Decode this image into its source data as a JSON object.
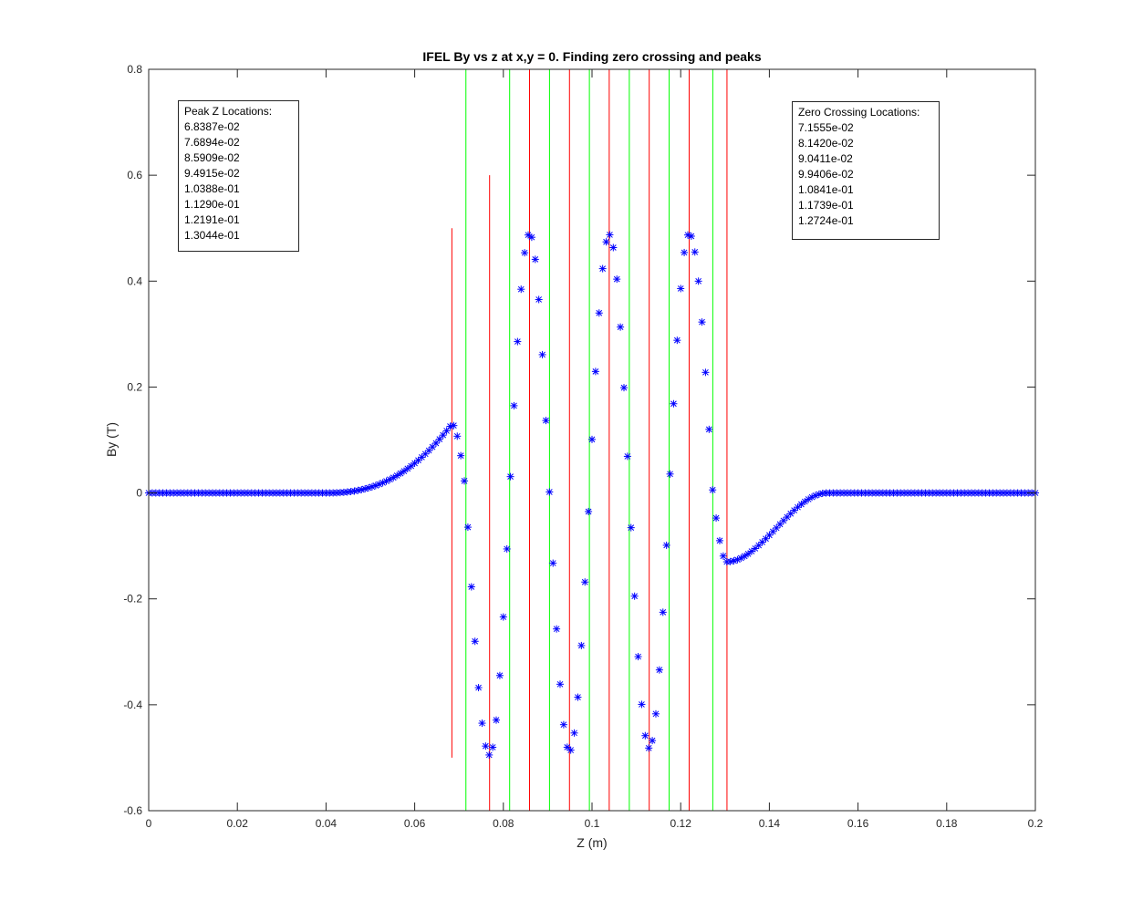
{
  "chart_data": {
    "type": "scatter",
    "title": "IFEL By vs z at x,y = 0.  Finding zero crossing and peaks",
    "xlabel": "Z (m)",
    "ylabel": "By (T)",
    "xlim": [
      0,
      0.2
    ],
    "ylim": [
      -0.6,
      0.8
    ],
    "xticks": [
      0,
      0.02,
      0.04,
      0.06,
      0.08,
      0.1,
      0.12,
      0.14,
      0.16,
      0.18,
      0.2
    ],
    "xtick_labels": [
      "0",
      "0.02",
      "0.04",
      "0.06",
      "0.08",
      "0.1",
      "0.12",
      "0.14",
      "0.16",
      "0.18",
      "0.2"
    ],
    "yticks": [
      -0.6,
      -0.4,
      -0.2,
      0,
      0.2,
      0.4,
      0.6,
      0.8
    ],
    "ytick_labels": [
      "-0.6",
      "-0.4",
      "-0.2",
      "0",
      "0.2",
      "0.4",
      "0.6",
      "0.8"
    ],
    "grid": false,
    "marker": "*",
    "marker_color": "#0000ff",
    "z_step": 0.0008,
    "peak_color": "#ff0000",
    "zero_color": "#00ff00",
    "peak_lines": [
      {
        "z": 0.068387,
        "y_range": [
          -0.5,
          0.5
        ]
      },
      {
        "z": 0.076894,
        "y_range": [
          -0.6,
          0.6
        ]
      },
      {
        "z": 0.085909,
        "y_range": [
          -0.6,
          0.8
        ]
      },
      {
        "z": 0.094915,
        "y_range": [
          -0.6,
          0.8
        ]
      },
      {
        "z": 0.10388,
        "y_range": [
          -0.6,
          0.8
        ]
      },
      {
        "z": 0.1129,
        "y_range": [
          -0.6,
          0.8
        ]
      },
      {
        "z": 0.12191,
        "y_range": [
          -0.6,
          0.8
        ]
      },
      {
        "z": 0.13044,
        "y_range": [
          -0.6,
          0.8
        ]
      }
    ],
    "zero_lines": [
      {
        "z": 0.071555,
        "y_range": [
          -0.6,
          0.8
        ]
      },
      {
        "z": 0.08142,
        "y_range": [
          -0.6,
          0.8
        ]
      },
      {
        "z": 0.090411,
        "y_range": [
          -0.6,
          0.8
        ]
      },
      {
        "z": 0.099406,
        "y_range": [
          -0.6,
          0.8
        ]
      },
      {
        "z": 0.10841,
        "y_range": [
          -0.6,
          0.8
        ]
      },
      {
        "z": 0.11739,
        "y_range": [
          -0.6,
          0.8
        ]
      },
      {
        "z": 0.12724,
        "y_range": [
          -0.6,
          0.8
        ]
      }
    ],
    "peaks": [
      {
        "z": 0.068387,
        "by": 0.13
      },
      {
        "z": 0.076894,
        "by": -0.495
      },
      {
        "z": 0.085909,
        "by": 0.49
      },
      {
        "z": 0.094915,
        "by": -0.488
      },
      {
        "z": 0.10388,
        "by": 0.488
      },
      {
        "z": 0.1129,
        "by": -0.482
      },
      {
        "z": 0.12191,
        "by": 0.49
      },
      {
        "z": 0.13044,
        "by": -0.13
      }
    ],
    "zeros": [
      0.071555,
      0.08142,
      0.090411,
      0.099406,
      0.10841,
      0.11739,
      0.12724
    ],
    "field_start": 0.04,
    "field_end": 0.153
  },
  "annotations": {
    "peak_box": {
      "title": "Peak Z Locations:",
      "values": [
        "6.8387e-02",
        "7.6894e-02",
        "8.5909e-02",
        "9.4915e-02",
        "1.0388e-01",
        "1.1290e-01",
        "1.2191e-01",
        "1.3044e-01"
      ]
    },
    "zero_box": {
      "title": "Zero Crossing Locations:",
      "values": [
        "7.1555e-02",
        "8.1420e-02",
        "9.0411e-02",
        "9.9406e-02",
        "1.0841e-01",
        "1.1739e-01",
        "1.2724e-01"
      ]
    }
  }
}
